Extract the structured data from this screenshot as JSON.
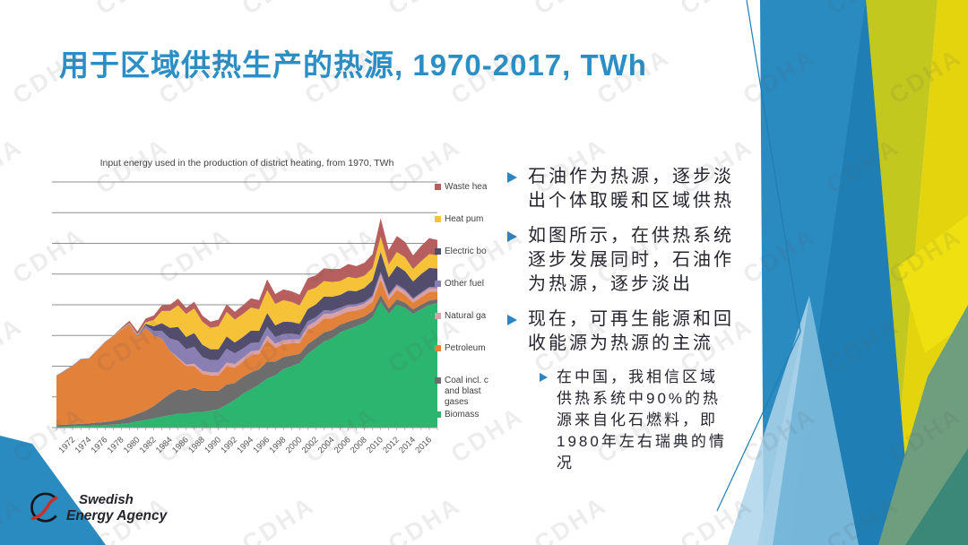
{
  "title": "用于区域供热生产的热源, 1970-2017, TWh",
  "watermark": {
    "text": "CDHA"
  },
  "logo": {
    "line1": "Swedish",
    "line2": "Energy Agency"
  },
  "palette": {
    "title_blue": "#2b8fc6",
    "bullet_marker_blue": "#2e85c2",
    "gridline_gray": "#8f8f8f",
    "deco": {
      "blue_main": "#2a8bc0",
      "blue_dark": "#1f7fb4",
      "blue_light": "#7fbcdd",
      "blue_lighter": "#aed3ea",
      "chartreuse": "#c3c81f",
      "yellow": "#e4d40e",
      "yellow_vivid": "#eee011",
      "sage": "#6f9e7e",
      "teal": "#3c8878",
      "line_blue": "#1f7db2"
    }
  },
  "bullets": {
    "items": [
      {
        "level": 1,
        "text": "石油作为热源，逐步淡出个体取暖和区域供热"
      },
      {
        "level": 1,
        "text": "如图所示，在供热系统逐步发展同时，石油作为热源，逐步淡出"
      },
      {
        "level": 1,
        "text": "现在，可再生能源和回收能源为热源的主流"
      },
      {
        "level": 2,
        "text": "在中国，我相信区域供热系统中90%的热源来自化石燃料，即1980年左右瑞典的情况"
      }
    ]
  },
  "chart_data": {
    "type": "area",
    "title": "Input energy used in the production of district heating, from 1970, TWh",
    "x_start": 1970,
    "x_end": 2017,
    "x_tick_labels": [
      "1972",
      "1974",
      "1976",
      "1978",
      "1980",
      "1982",
      "1984",
      "1986",
      "1988",
      "1990",
      "1992",
      "1994",
      "1996",
      "1998",
      "2000",
      "2002",
      "2004",
      "2006",
      "2008",
      "2010",
      "2012",
      "2014",
      "2016"
    ],
    "ylim": [
      0,
      80
    ],
    "y_gridline_step": 10,
    "grid": true,
    "y_axis_labels_visible": false,
    "legend_position": "right",
    "series": [
      {
        "name": "Biomass",
        "legend_lines": [
          "Biomass"
        ],
        "color": "#2cb56f",
        "values": [
          0.4,
          0.4,
          0.5,
          0.5,
          0.6,
          0.7,
          0.8,
          1.0,
          1.2,
          1.5,
          2.0,
          2.5,
          3.0,
          3.5,
          4.0,
          4.5,
          4.5,
          5.0,
          5.0,
          5.5,
          6.0,
          7.5,
          9.0,
          11,
          12.5,
          14,
          16,
          17,
          19,
          20,
          21,
          24,
          26,
          28,
          29,
          31,
          32,
          33,
          34,
          36,
          41,
          37,
          40,
          39,
          37,
          38.5,
          40,
          40.5
        ]
      },
      {
        "name": "Coal incl. coke and blast gases",
        "legend_lines": [
          "Coal incl. c",
          "and blast",
          "gases"
        ],
        "color": "#6d6d6d",
        "values": [
          0.4,
          0.5,
          0.6,
          0.7,
          0.8,
          0.9,
          1.0,
          1.2,
          1.5,
          2.0,
          2.5,
          3.0,
          4.0,
          5.5,
          7.0,
          8.0,
          7.5,
          8.0,
          7.0,
          6.5,
          6.0,
          6.5,
          5.5,
          5.5,
          5.5,
          5.0,
          5.5,
          4.5,
          4.0,
          3.5,
          3.0,
          3.2,
          3.0,
          3.0,
          2.8,
          2.5,
          2.5,
          2.3,
          2.2,
          2.0,
          2.2,
          1.8,
          1.8,
          1.7,
          1.5,
          1.5,
          1.4,
          1.3
        ]
      },
      {
        "name": "Petroleum",
        "legend_lines": [
          "Petroleum"
        ],
        "color": "#e2813a",
        "values": [
          16,
          17.5,
          19,
          21,
          21,
          23.5,
          26,
          27.5,
          29,
          30,
          25,
          27,
          23,
          20,
          14,
          10,
          8,
          7,
          5.5,
          5,
          5,
          6,
          5,
          5,
          5.5,
          5,
          7,
          4.5,
          4.2,
          4,
          3.5,
          4.5,
          4.2,
          4.5,
          3.8,
          3.2,
          3.3,
          2.8,
          2.8,
          3,
          5,
          2.8,
          3,
          2.6,
          2.2,
          2.5,
          2.8,
          2.5
        ]
      },
      {
        "name": "Natural gas",
        "legend_lines": [
          "Natural ga"
        ],
        "color": "#d9a0a6",
        "values": [
          0,
          0,
          0,
          0,
          0,
          0,
          0,
          0,
          0,
          0,
          0,
          0,
          0,
          0,
          0,
          0.3,
          0.5,
          0.8,
          1.0,
          1.0,
          1.0,
          1.2,
          1.2,
          1.2,
          1.3,
          1.2,
          1.5,
          1.3,
          1.3,
          1.3,
          1.2,
          1.4,
          1.4,
          1.5,
          1.5,
          1.4,
          1.5,
          1.4,
          1.4,
          1.4,
          1.8,
          1.3,
          1.4,
          1.2,
          1.0,
          1.1,
          1.2,
          1.1
        ]
      },
      {
        "name": "Other fuels",
        "legend_lines": [
          "Other fuel"
        ],
        "color": "#8a7fb2",
        "values": [
          0.2,
          0.2,
          0.2,
          0.2,
          0.2,
          0.2,
          0.2,
          0.2,
          0.2,
          0.3,
          0.5,
          0.8,
          1.5,
          2.5,
          4.0,
          5.5,
          5.0,
          5.5,
          4.5,
          4.0,
          4.0,
          4.5,
          3.5,
          3.0,
          2.8,
          2.5,
          2.8,
          2.2,
          2.0,
          1.8,
          1.5,
          1.5,
          1.3,
          1.2,
          1.0,
          0.9,
          0.8,
          0.7,
          0.6,
          0.6,
          0.7,
          0.5,
          0.5,
          0.5,
          0.4,
          0.4,
          0.4,
          0.4
        ]
      },
      {
        "name": "Electric boilers",
        "legend_lines": [
          "Electric bo"
        ],
        "color": "#524d6d",
        "values": [
          0,
          0,
          0,
          0,
          0,
          0,
          0,
          0,
          0,
          0,
          0,
          0.5,
          1.5,
          2.5,
          3.5,
          4.5,
          4.0,
          4.5,
          4.0,
          3.5,
          3.5,
          4.0,
          3.5,
          3.8,
          4.0,
          3.8,
          4.5,
          3.8,
          4.0,
          3.8,
          3.6,
          4.0,
          4.2,
          4.5,
          4.5,
          4.2,
          4.5,
          4.2,
          4.5,
          5.0,
          6.5,
          5.5,
          6.0,
          6.0,
          5.5,
          6.0,
          6.2,
          6.0
        ]
      },
      {
        "name": "Heat pumps",
        "legend_lines": [
          "Heat pum"
        ],
        "color": "#f6c338",
        "values": [
          0,
          0,
          0,
          0,
          0,
          0,
          0,
          0.1,
          0.1,
          0.2,
          0.3,
          0.5,
          2.0,
          4.0,
          5.5,
          7.0,
          7.5,
          8.0,
          7.5,
          7.0,
          7.5,
          8.0,
          7.5,
          7.5,
          7.5,
          7.0,
          7.5,
          7.0,
          7.0,
          6.5,
          6.0,
          6.0,
          5.5,
          5.0,
          4.8,
          4.5,
          4.5,
          4.2,
          4.0,
          4.0,
          5.0,
          4.2,
          4.5,
          4.5,
          4.0,
          4.2,
          4.5,
          4.3
        ]
      },
      {
        "name": "Waste heat",
        "legend_lines": [
          "Waste hea"
        ],
        "color": "#b75f5e",
        "values": [
          0,
          0,
          0,
          0,
          0,
          0,
          0,
          0,
          0.5,
          0.8,
          1.0,
          1.2,
          1.5,
          1.8,
          2.0,
          2.2,
          2.0,
          2.2,
          2.0,
          2.0,
          2.2,
          2.5,
          2.5,
          2.8,
          3.0,
          3.0,
          3.5,
          3.2,
          3.5,
          3.5,
          3.5,
          4.0,
          4.0,
          4.2,
          4.2,
          4.0,
          4.2,
          4.0,
          4.2,
          4.5,
          6.0,
          4.8,
          5.2,
          5.0,
          4.5,
          5.0,
          5.2,
          5.0
        ]
      }
    ]
  }
}
